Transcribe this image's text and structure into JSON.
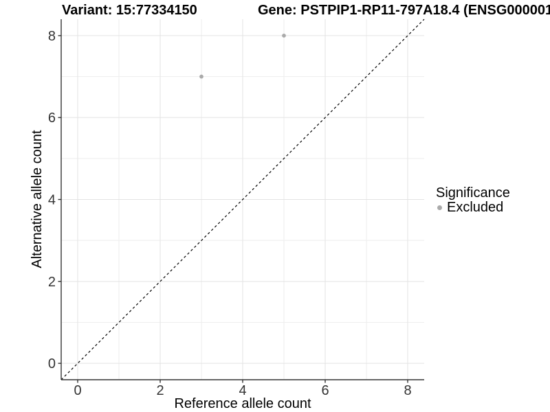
{
  "chart_data": {
    "type": "scatter",
    "title": "Variant: 15:77334150",
    "title_right": "Gene: PSTPIP1-RP11-797A18.4 (ENSG000001",
    "xlabel": "Reference allele count",
    "ylabel": "Alternative allele count",
    "xlim": [
      -0.4,
      8.4
    ],
    "ylim": [
      -0.4,
      8.4
    ],
    "x_ticks": [
      0,
      2,
      4,
      6,
      8
    ],
    "y_ticks": [
      0,
      2,
      4,
      6,
      8
    ],
    "x_minor_ticks": [
      1,
      3,
      5,
      7
    ],
    "y_minor_ticks": [
      1,
      3,
      5,
      7
    ],
    "grid": true,
    "series": [
      {
        "name": "Excluded",
        "color": "#aaaaaa",
        "points": [
          {
            "x": 3,
            "y": 7
          },
          {
            "x": 5,
            "y": 8
          }
        ]
      }
    ],
    "reference_line": {
      "type": "identity",
      "style": "dashed",
      "color": "#000000"
    },
    "legend": {
      "position": "right",
      "title": "Significance",
      "items": [
        {
          "label": "Excluded",
          "color": "#aaaaaa"
        }
      ]
    },
    "colors": {
      "background": "#ffffff",
      "grid_major": "#e3e3e3",
      "grid_minor": "#eeeeee",
      "axis_line": "#333333",
      "tick_label": "#333333"
    }
  }
}
